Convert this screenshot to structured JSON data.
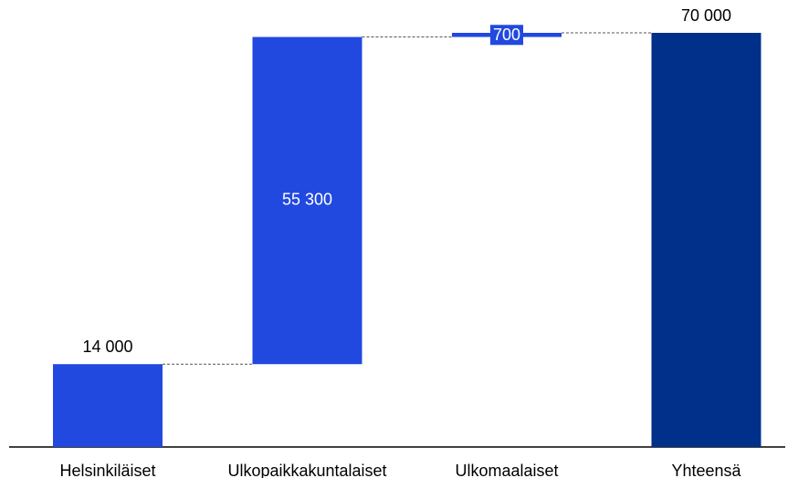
{
  "chart_data": {
    "type": "waterfall",
    "categories": [
      "Helsinkiläiset",
      "Ulkopaikkakuntalaiset",
      "Ulkomaalaiset",
      "Yhteensä"
    ],
    "values": [
      14000,
      55300,
      700,
      70000
    ],
    "value_labels": [
      "14 000",
      "55 300",
      "700",
      "70 000"
    ],
    "is_total": [
      false,
      false,
      false,
      true
    ],
    "colors": [
      "#2149e0",
      "#2149e0",
      "#2149e0",
      "#01308a"
    ],
    "ylim": [
      0,
      70000
    ]
  }
}
